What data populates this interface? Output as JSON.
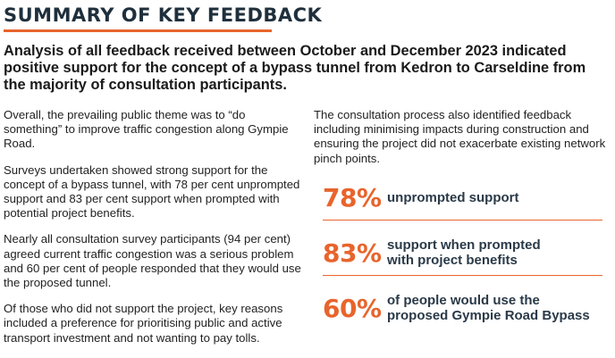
{
  "title": "SUMMARY OF KEY FEEDBACK",
  "lead": "Analysis of all feedback received between October and December 2023 indicated positive support for the concept of a bypass tunnel from Kedron to Carseldine from the majority of consultation participants.",
  "left_column": {
    "paragraphs": [
      "Overall, the prevailing public theme was to “do something” to improve traffic congestion along Gympie Road.",
      "Surveys undertaken showed strong support for the concept of a bypass tunnel, with 78 per cent unprompted support and 83 per cent support when prompted with potential project benefits.",
      "Nearly all consultation survey participants (94 per cent) agreed current traffic congestion was a serious problem and 60 per cent of people responded that they would use the proposed tunnel.",
      "Of those who did not support the project, key reasons included a preference for prioritising public and active transport investment and not wanting to pay tolls."
    ]
  },
  "right_column": {
    "paragraph": "The consultation process also identified feedback including minimising impacts during construction and ensuring the project did not exacerbate existing network pinch points."
  },
  "stats": [
    {
      "value": "78%",
      "label": "unprompted support"
    },
    {
      "value": "83%",
      "label": "support when prompted\nwith project benefits"
    },
    {
      "value": "60%",
      "label": "of people would use the\nproposed Gympie Road Bypass"
    }
  ],
  "colors": {
    "accent": "#e8642c",
    "heading": "#1f2f3c",
    "body": "#222222"
  }
}
